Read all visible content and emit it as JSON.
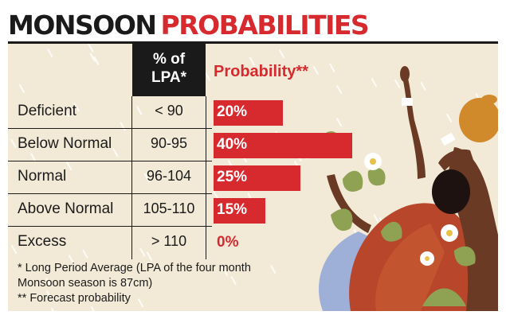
{
  "title": {
    "part1": "MONSOON",
    "part2": "PROBABILITIES"
  },
  "columns": {
    "lpa_line1": "% of",
    "lpa_line2": "LPA*",
    "probability": "Probability**"
  },
  "chart_data": {
    "type": "bar",
    "orientation": "horizontal",
    "title": "MONSOON PROBABILITIES",
    "categories": [
      "Deficient",
      "Below Normal",
      "Normal",
      "Above Normal",
      "Excess"
    ],
    "lpa_ranges": [
      "< 90",
      "90-95",
      "96-104",
      "105-110",
      "> 110"
    ],
    "values": [
      20,
      40,
      25,
      15,
      0
    ],
    "value_labels": [
      "20%",
      "40%",
      "25%",
      "15%",
      "0%"
    ],
    "xlim": [
      0,
      40
    ],
    "grid": false,
    "legend": false,
    "bar_color": "#d62a2f"
  },
  "notes": [
    "* Long Period Average (LPA of the four month",
    "Monsoon season is 87cm)",
    "** Forecast probability"
  ],
  "colors": {
    "accent": "#d62a2f",
    "ink": "#1a1a1a",
    "panel": "#f2ead6"
  }
}
